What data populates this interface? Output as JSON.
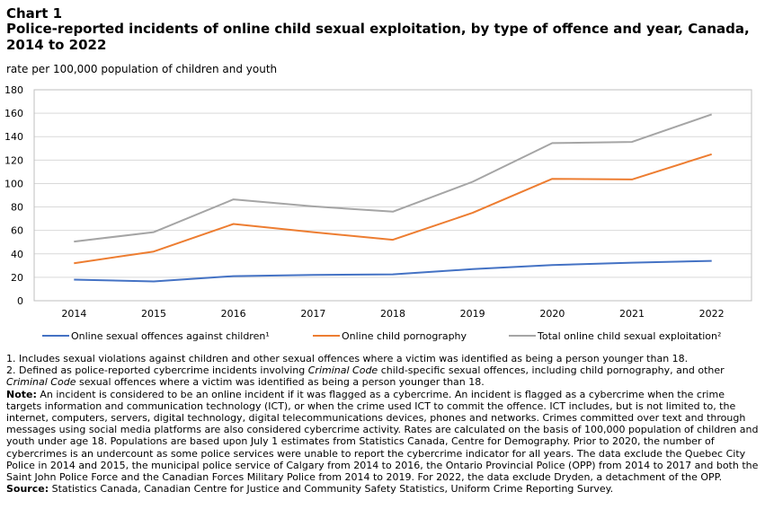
{
  "header": {
    "chart_label": "Chart 1",
    "title": "Police-reported incidents of online child sexual exploitation, by type of offence and year, Canada, 2014 to 2022",
    "unit": "rate per 100,000  population of children and youth"
  },
  "chart_data": {
    "type": "line",
    "x": [
      "2014",
      "2015",
      "2016",
      "2017",
      "2018",
      "2019",
      "2020",
      "2021",
      "2022"
    ],
    "ylim": [
      0,
      180
    ],
    "yticks": [
      "0",
      "20",
      "40",
      "60",
      "80",
      "100",
      "120",
      "140",
      "160",
      "180"
    ],
    "grid": true,
    "legend_position": "bottom",
    "series": [
      {
        "name": "Online sexual offences against children¹",
        "color": "#4472c4",
        "values": [
          18,
          16.5,
          21,
          22,
          22.5,
          27,
          30.5,
          32.5,
          34
        ]
      },
      {
        "name": "Online child pornography",
        "color": "#ed7d31",
        "values": [
          32,
          42,
          65.5,
          58.5,
          52,
          75,
          104,
          103.5,
          125
        ]
      },
      {
        "name": "Total online child sexual exploitation²",
        "color": "#a5a5a5",
        "values": [
          50.5,
          58.5,
          86.5,
          80.5,
          76,
          101.5,
          134.5,
          135.5,
          159
        ]
      }
    ]
  },
  "notes": {
    "note1": "1. Includes sexual violations against children and other sexual offences where a victim was identified as being a person younger than 18.",
    "note2_a": "2. Defined as police-reported cybercrime incidents involving ",
    "note2_code1": "Criminal Code",
    "note2_b": " child-specific sexual offences, including child pornography, and other ",
    "note2_code2": "Criminal Code",
    "note2_c": " sexual offences where a victim was identified as being a person younger than 18.",
    "note_label": "Note:",
    "note_text": " An incident is considered to be an online incident if it was flagged as a cybercrime. An incident is flagged as a cybercrime when the crime targets information and communication technology (ICT), or when the crime used ICT to commit the offence. ICT includes, but is not limited to, the internet, computers, servers, digital technology, digital telecommunications devices, phones and networks. Crimes committed over text and through messages using social media platforms are also considered cybercrime activity. Rates are calculated on the basis of 100,000 population of children and youth under age 18. Populations are based upon July 1 estimates from Statistics Canada, Centre for Demography. Prior to 2020, the number of cybercrimes is an undercount as some police services were unable to report the cybercrime indicator for all years. The data exclude the Quebec City Police in 2014 and 2015, the municipal police service of Calgary from 2014 to 2016, the Ontario Provincial Police (OPP) from 2014 to 2017 and both the Saint John Police Force and the Canadian Forces Military Police from 2014 to 2019. For 2022, the data exclude Dryden, a detachment of the OPP.",
    "source_label": "Source:",
    "source_text": " Statistics Canada, Canadian Centre for Justice and Community Safety Statistics, Uniform Crime Reporting Survey."
  }
}
